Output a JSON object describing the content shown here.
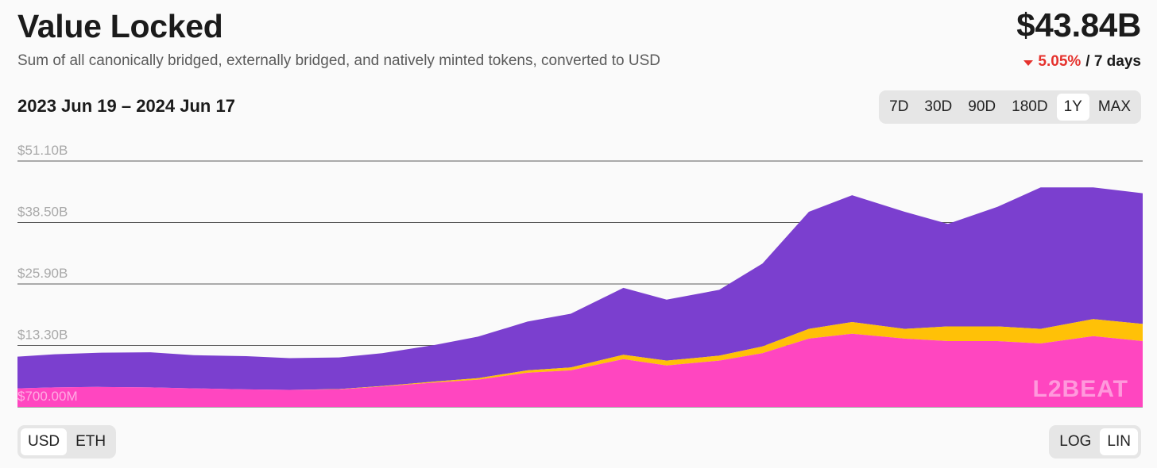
{
  "header": {
    "title": "Value Locked",
    "subtitle": "Sum of all canonically bridged, externally bridged, and natively minted tokens, converted to USD",
    "value": "$43.84B",
    "change_pct": "5.05%",
    "change_period": "/ 7 days",
    "change_direction": "down"
  },
  "date_range": "2023 Jun 19 – 2024 Jun 17",
  "range_options": [
    "7D",
    "30D",
    "90D",
    "180D",
    "1Y",
    "MAX"
  ],
  "range_selected": "1Y",
  "currency_options": [
    "USD",
    "ETH"
  ],
  "currency_selected": "USD",
  "scale_options": [
    "LOG",
    "LIN"
  ],
  "scale_selected": "LIN",
  "watermark": "L2BEAT",
  "colors": {
    "canonical": "#7b3fcf",
    "external": "#ffc107",
    "native": "#ff46c0",
    "negative": "#e5322d",
    "grid": "#5a5a5a"
  },
  "chart_data": {
    "type": "area",
    "stacked": true,
    "x_start": "2023-06-19",
    "x_end": "2024-06-17",
    "ylim": [
      0.7,
      51.1
    ],
    "y_unit": "USD billions",
    "yticks": [
      "$700.00M",
      "$13.30B",
      "$25.90B",
      "$38.50B",
      "$51.10B"
    ],
    "ytick_values": [
      0.7,
      13.3,
      25.9,
      38.5,
      51.1
    ],
    "grid": true,
    "x": [
      "2023-06-19",
      "2023-07-01",
      "2023-07-15",
      "2023-08-01",
      "2023-08-15",
      "2023-09-01",
      "2023-09-15",
      "2023-10-01",
      "2023-10-15",
      "2023-11-01",
      "2023-11-15",
      "2023-12-01",
      "2023-12-15",
      "2024-01-01",
      "2024-01-15",
      "2024-02-01",
      "2024-02-15",
      "2024-03-01",
      "2024-03-15",
      "2024-04-01",
      "2024-04-15",
      "2024-05-01",
      "2024-05-15",
      "2024-06-01",
      "2024-06-17"
    ],
    "series": [
      {
        "name": "",
        "values": [
          3.8,
          4.0,
          4.1,
          4.0,
          3.8,
          3.6,
          3.5,
          3.6,
          4.2,
          5.0,
          5.6,
          7.0,
          7.5,
          9.8,
          8.5,
          9.5,
          11.0,
          14.0,
          15.0,
          14.0,
          13.5,
          13.5,
          13.0,
          14.5,
          13.5
        ]
      },
      {
        "name": "",
        "values": [
          0.0,
          0.0,
          0.0,
          0.0,
          0.0,
          0.0,
          0.0,
          0.05,
          0.1,
          0.2,
          0.3,
          0.5,
          0.6,
          0.9,
          1.0,
          1.0,
          1.4,
          2.0,
          2.4,
          2.0,
          3.0,
          3.0,
          3.0,
          3.5,
          3.5
        ]
      },
      {
        "name": "",
        "values": [
          6.5,
          6.8,
          7.0,
          7.2,
          6.8,
          6.8,
          6.5,
          6.5,
          6.7,
          7.5,
          8.5,
          10.0,
          11.0,
          13.7,
          12.5,
          13.5,
          17.0,
          24.0,
          26.0,
          24.0,
          21.0,
          24.5,
          29.0,
          27.0,
          26.8
        ]
      }
    ]
  }
}
